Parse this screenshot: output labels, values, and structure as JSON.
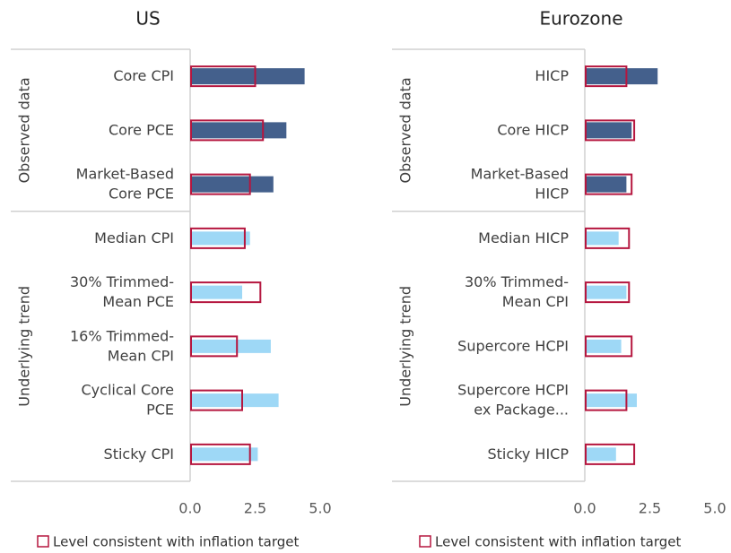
{
  "chart_data": [
    {
      "type": "bar",
      "orientation": "horizontal",
      "title": "US",
      "categories": [
        "Core CPI",
        "Core PCE",
        "Market-Based\nCore PCE",
        "Median CPI",
        "30% Trimmed-\nMean PCE",
        "16% Trimmed-\nMean CPI",
        "Cyclical Core\nPCE",
        "Sticky CPI"
      ],
      "groups": [
        {
          "label": "Observed data",
          "count": 3
        },
        {
          "label": "Underlying trend",
          "count": 5
        }
      ],
      "series": [
        {
          "values": [
            4.4,
            3.7,
            3.2,
            2.3,
            2.0,
            3.1,
            3.4,
            2.6
          ],
          "colors": [
            "#44608c",
            "#44608c",
            "#44608c",
            "#9ed8f6",
            "#9ed8f6",
            "#9ed8f6",
            "#9ed8f6",
            "#9ed8f6"
          ]
        },
        {
          "name": "Level consistent with inflation target",
          "color": "#b5163f",
          "style": "outline",
          "values": [
            2.5,
            2.8,
            2.3,
            2.1,
            2.7,
            1.8,
            2.0,
            2.3
          ]
        }
      ],
      "xlim": [
        0,
        5
      ],
      "xticks": [
        {
          "value": 0,
          "label": "0.0"
        },
        2.5,
        {
          "value": 5,
          "label": "5.0"
        }
      ]
    },
    {
      "type": "bar",
      "orientation": "horizontal",
      "title": "Eurozone",
      "categories": [
        "HICP",
        "Core HICP",
        "Market-Based\nHICP",
        "Median HICP",
        "30% Trimmed-\nMean CPI",
        "Supercore HCPI",
        "Supercore HCPI\nex Package...",
        "Sticky HICP"
      ],
      "groups": [
        {
          "label": "Observed data",
          "count": 3
        },
        {
          "label": "Underlying trend",
          "count": 5
        }
      ],
      "series": [
        {
          "values": [
            2.8,
            1.8,
            1.6,
            1.3,
            1.6,
            1.4,
            2.0,
            1.2
          ],
          "colors": [
            "#44608c",
            "#44608c",
            "#44608c",
            "#9ed8f6",
            "#9ed8f6",
            "#9ed8f6",
            "#9ed8f6",
            "#9ed8f6"
          ]
        },
        {
          "name": "Level consistent with inflation target",
          "color": "#b5163f",
          "style": "outline",
          "values": [
            1.6,
            1.9,
            1.8,
            1.7,
            1.7,
            1.8,
            1.6,
            1.9
          ]
        }
      ],
      "xlim": [
        0,
        5
      ],
      "xticks": [
        {
          "value": 0,
          "label": "0.0"
        },
        2.5,
        {
          "value": 5,
          "label": "5.0"
        }
      ]
    }
  ]
}
